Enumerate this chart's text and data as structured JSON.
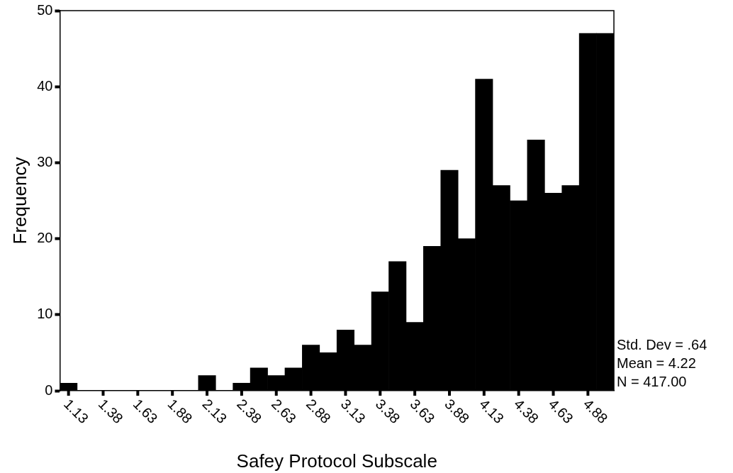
{
  "chart_data": {
    "type": "histogram",
    "xlabel": "Safey Protocol Subscale",
    "ylabel": "Frequency",
    "bins": [
      1.0625,
      1.1875,
      1.3125,
      1.4375,
      1.5625,
      1.6875,
      1.8125,
      1.9375,
      2.0625,
      2.1875,
      2.3125,
      2.4375,
      2.5625,
      2.6875,
      2.8125,
      2.9375,
      3.0625,
      3.1875,
      3.3125,
      3.4375,
      3.5625,
      3.6875,
      3.8125,
      3.9375,
      4.0625,
      4.1875,
      4.3125,
      4.4375,
      4.5625,
      4.6875,
      4.8125,
      4.9375,
      5.0625
    ],
    "values": [
      1,
      0,
      0,
      0,
      0,
      0,
      0,
      0,
      2,
      0,
      1,
      3,
      2,
      3,
      6,
      5,
      8,
      6,
      13,
      17,
      9,
      19,
      29,
      20,
      41,
      27,
      25,
      33,
      26,
      27,
      47,
      47
    ],
    "color": "#000000",
    "xlim": [
      1.0625,
      5.0625
    ],
    "xticks": [
      {
        "value": 1.125,
        "label": "1.13"
      },
      {
        "value": 1.375,
        "label": "1.38"
      },
      {
        "value": 1.625,
        "label": "1.63"
      },
      {
        "value": 1.875,
        "label": "1.88"
      },
      {
        "value": 2.125,
        "label": "2.13"
      },
      {
        "value": 2.375,
        "label": "2.38"
      },
      {
        "value": 2.625,
        "label": "2.63"
      },
      {
        "value": 2.875,
        "label": "2.88"
      },
      {
        "value": 3.125,
        "label": "3.13"
      },
      {
        "value": 3.375,
        "label": "3.38"
      },
      {
        "value": 3.625,
        "label": "3.63"
      },
      {
        "value": 3.875,
        "label": "3.88"
      },
      {
        "value": 4.125,
        "label": "4.13"
      },
      {
        "value": 4.375,
        "label": "4.38"
      },
      {
        "value": 4.625,
        "label": "4.63"
      },
      {
        "value": 4.875,
        "label": "4.88"
      }
    ],
    "ylim": [
      0,
      50
    ],
    "yticks": [
      0,
      10,
      20,
      30,
      40,
      50
    ],
    "annotations": [
      "Std. Dev = .64",
      "Mean = 4.22",
      "N = 417.00"
    ]
  }
}
